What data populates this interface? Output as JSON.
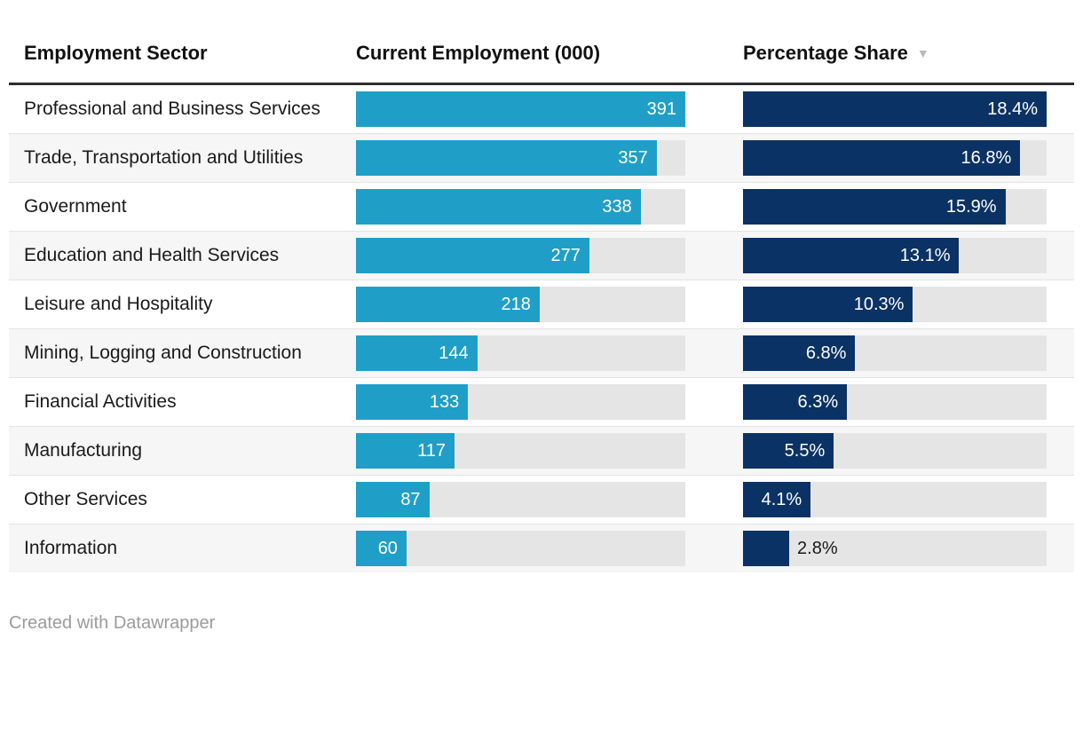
{
  "header": {
    "columns": [
      {
        "label": "Employment Sector"
      },
      {
        "label": "Current Employment (000)"
      },
      {
        "label": "Percentage Share",
        "sort_icon": "▼"
      }
    ]
  },
  "rows": [
    {
      "sector": "Professional and Business Services",
      "employment": 391,
      "share": 18.4,
      "share_label": "18.4%"
    },
    {
      "sector": "Trade, Transportation and Utilities",
      "employment": 357,
      "share": 16.8,
      "share_label": "16.8%"
    },
    {
      "sector": "Government",
      "employment": 338,
      "share": 15.9,
      "share_label": "15.9%"
    },
    {
      "sector": "Education and Health Services",
      "employment": 277,
      "share": 13.1,
      "share_label": "13.1%"
    },
    {
      "sector": "Leisure and Hospitality",
      "employment": 218,
      "share": 10.3,
      "share_label": "10.3%"
    },
    {
      "sector": "Mining, Logging and Construction",
      "employment": 144,
      "share": 6.8,
      "share_label": "6.8%"
    },
    {
      "sector": "Financial Activities",
      "employment": 133,
      "share": 6.3,
      "share_label": "6.3%"
    },
    {
      "sector": "Manufacturing",
      "employment": 117,
      "share": 5.5,
      "share_label": "5.5%"
    },
    {
      "sector": "Other Services",
      "employment": 87,
      "share": 4.1,
      "share_label": "4.1%"
    },
    {
      "sector": "Information",
      "employment": 60,
      "share": 2.8,
      "share_label": "2.8%"
    }
  ],
  "footer": {
    "credit": "Created with Datawrapper"
  },
  "colors": {
    "employment_bar": "#1F9FC8",
    "share_bar": "#0B3264",
    "bar_track": "#e5e5e5",
    "row_stripe": "#f6f6f6",
    "header_rule": "#2d2d2d",
    "sort_icon": "#b9b9b9",
    "credit_text": "#9b9b9b",
    "inside_label": "#ffffff"
  },
  "chart_data": {
    "type": "bar",
    "orientation": "horizontal",
    "title": "",
    "categories": [
      "Professional and Business Services",
      "Trade, Transportation and Utilities",
      "Government",
      "Education and Health Services",
      "Leisure and Hospitality",
      "Mining, Logging and Construction",
      "Financial Activities",
      "Manufacturing",
      "Other Services",
      "Information"
    ],
    "series": [
      {
        "name": "Current Employment (000)",
        "values": [
          391,
          357,
          338,
          277,
          218,
          144,
          133,
          117,
          87,
          60
        ],
        "xlim": [
          0,
          391
        ],
        "color": "#1F9FC8"
      },
      {
        "name": "Percentage Share",
        "values": [
          18.4,
          16.8,
          15.9,
          13.1,
          10.3,
          6.8,
          6.3,
          5.5,
          4.1,
          2.8
        ],
        "unit": "%",
        "xlim": [
          0,
          18.4
        ],
        "color": "#0B3264"
      }
    ],
    "legend": "none",
    "grid": false,
    "sort": "Percentage Share descending",
    "data_labels": "inside bar end, outside when bar too short"
  }
}
